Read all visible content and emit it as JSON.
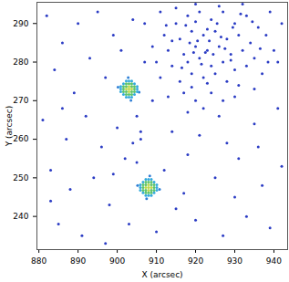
{
  "chart_data": {
    "type": "scatter",
    "xlabel": "X (arcsec)",
    "ylabel": "Y (arcsec)",
    "xlim": [
      879.5,
      943.5
    ],
    "ylim": [
      231.4,
      295.5
    ],
    "xticks": [
      880,
      890,
      900,
      910,
      920,
      930,
      940
    ],
    "yticks": [
      240,
      250,
      260,
      270,
      280,
      290
    ],
    "grid": false,
    "series": [
      {
        "color": "#2b3cc4",
        "x": [
          915,
          918,
          921,
          924,
          927,
          930,
          933,
          936,
          912,
          916,
          919,
          922,
          925,
          928,
          931,
          934,
          938,
          913,
          917,
          920,
          923,
          926,
          929,
          932,
          935,
          940,
          910,
          914,
          918,
          921,
          924,
          927,
          930,
          933,
          937,
          911,
          916,
          919,
          922,
          925,
          928,
          931,
          935,
          913,
          917,
          920,
          924,
          927,
          930,
          918,
          922,
          926,
          915,
          920,
          926,
          932,
          939,
          942,
          941,
          909,
          907,
          911,
          920.5,
          922.5,
          923.5,
          921.5,
          924.5,
          919.5,
          926.5,
          918.5,
          925.5,
          917.5,
          929.5,
          923,
          920,
          927.5,
          916.5,
          929,
          923,
          919,
          931.5,
          934.5,
          936.5,
          938.5,
          912.5,
          914,
          882,
          886,
          890,
          895,
          899,
          884,
          889,
          893,
          897,
          881,
          887,
          892,
          896,
          900,
          883,
          888,
          894,
          898,
          902,
          885,
          891,
          897,
          903,
          910,
          915,
          920,
          927,
          933,
          939,
          912,
          918,
          925,
          931,
          937,
          942,
          914,
          921,
          928,
          935,
          941,
          906,
          905,
          907,
          904,
          901,
          886,
          883,
          899,
          909,
          930,
          936,
          917,
          905,
          906,
          904
        ],
        "y": [
          290,
          292,
          293,
          291,
          293,
          290,
          292,
          289,
          287,
          286,
          288,
          287,
          288,
          286,
          287,
          285,
          287,
          283,
          282,
          284,
          283,
          284,
          282,
          283,
          281,
          283,
          280,
          279,
          280,
          281,
          279,
          280,
          278,
          279,
          277,
          276,
          275,
          277,
          276,
          277,
          275,
          274,
          273,
          271,
          272,
          270,
          272,
          270,
          271,
          267,
          268,
          266,
          294,
          295,
          294.5,
          295,
          293,
          290,
          280,
          284,
          290,
          293,
          285.5,
          282.5,
          285.5,
          279.5,
          282,
          282.5,
          286.5,
          285,
          290,
          289.5,
          289,
          288.5,
          290.5,
          283.5,
          278.5,
          280.5,
          274.5,
          273.5,
          292.5,
          290.5,
          283.5,
          280,
          289.5,
          285.5,
          292,
          285,
          290,
          293,
          287,
          278,
          272,
          281,
          276,
          265,
          260,
          266,
          258,
          263,
          252,
          247,
          250,
          243,
          255,
          238,
          235,
          233,
          238,
          236,
          242,
          239,
          235,
          240,
          237,
          252,
          256,
          250,
          255,
          248,
          253,
          262,
          261,
          259,
          264,
          268,
          260,
          266,
          280,
          291,
          283,
          268,
          244,
          251,
          270,
          245,
          258,
          246,
          254,
          262,
          259
        ]
      },
      {
        "color": "#2f7fd6",
        "x": [
          900.2,
          905.6,
          902.8,
          903.5,
          905.2,
          910.8,
          908.3,
          907.5
        ],
        "y": [
          273.5,
          272.2,
          276,
          270.1,
          248,
          247,
          250.5,
          244.6
        ]
      },
      {
        "color": "#33aadd",
        "x": [
          902.3,
          903,
          903.7,
          901.6,
          904.4,
          900.9,
          905.1,
          900.9,
          905.1,
          900.9,
          905.1,
          901.6,
          904.4,
          902.3,
          903,
          903.7,
          907.3,
          908,
          908.7,
          906.6,
          909.4,
          905.9,
          910.1,
          905.9,
          910.1,
          905.9,
          910.1,
          906.6,
          909.4,
          907.3,
          908,
          908.7
        ],
        "y": [
          270.9,
          270.9,
          270.9,
          271.6,
          271.6,
          272.3,
          272.3,
          273,
          273,
          273.7,
          273.7,
          274.4,
          274.4,
          275.1,
          275.1,
          275.1,
          245.4,
          245.4,
          245.4,
          246.1,
          246.1,
          246.8,
          246.8,
          247.5,
          247.5,
          248.2,
          248.2,
          248.9,
          248.9,
          249.6,
          249.6,
          249.6
        ]
      },
      {
        "color": "#5cc36a",
        "x": [
          902.3,
          903.7,
          902.3,
          903.7,
          901.6,
          904.4,
          903,
          903,
          901.6,
          904.4,
          901.6,
          904.4,
          902.3,
          903.7,
          902.3,
          903.7,
          907.3,
          908.7,
          907.3,
          908.7,
          906.6,
          909.4,
          908,
          908,
          906.6,
          909.4,
          906.6,
          909.4,
          907.3,
          908.7,
          907.3,
          908.7
        ],
        "y": [
          272.3,
          272.3,
          273.7,
          273.7,
          273,
          273,
          271.6,
          274.4,
          272.3,
          272.3,
          273.7,
          273.7,
          271.6,
          271.6,
          274.4,
          274.4,
          246.8,
          246.8,
          248.2,
          248.2,
          247.5,
          247.5,
          246.1,
          248.9,
          246.8,
          246.8,
          248.2,
          248.2,
          246.1,
          246.1,
          248.9,
          248.9
        ]
      },
      {
        "color": "#bcd84a",
        "x": [
          903,
          902.3,
          903.7,
          903,
          903,
          908,
          907.3,
          908.7,
          908,
          908
        ],
        "y": [
          273,
          273,
          273,
          272.3,
          273.7,
          247.5,
          247.5,
          247.5,
          246.8,
          248.2
        ]
      }
    ]
  }
}
